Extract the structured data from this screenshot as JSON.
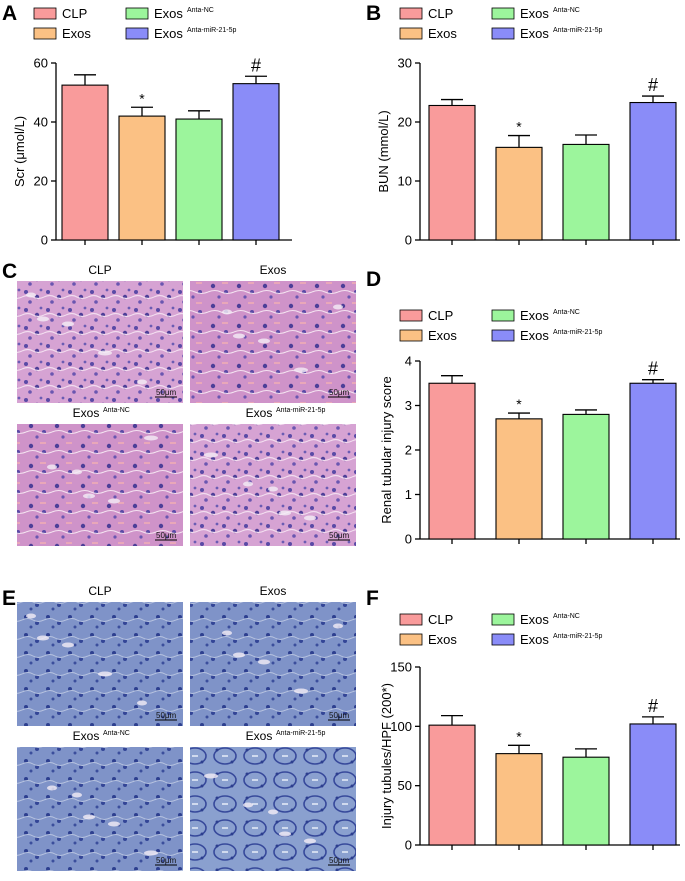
{
  "colors": {
    "CLP": "#f99b9b",
    "Exos": "#fbc184",
    "ExosAntaNC": "#9cf59c",
    "ExosAnta": "#8a8cf8",
    "he_stain": "#c98fc8",
    "toluidine": "#6f84c4"
  },
  "legend": {
    "clp": "CLP",
    "exos": "Exos",
    "nc_base": "Exos",
    "nc_sup": "Anta-NC",
    "anta_base": "Exos",
    "anta_sup": "Anta-miR-21-5p"
  },
  "panels": {
    "A": "A",
    "B": "B",
    "C": "C",
    "D": "D",
    "E": "E",
    "F": "F"
  },
  "markers": {
    "star": "*",
    "hash": "#"
  },
  "chart_data": [
    {
      "type": "bar",
      "panel": "A",
      "categories": [
        "CLP",
        "Exos",
        "Exos Anta-NC",
        "Exos Anta-miR-21-5p"
      ],
      "values": [
        52.5,
        42,
        41,
        53
      ],
      "errors": [
        3.5,
        3,
        2.8,
        2.5
      ],
      "annotations": [
        "",
        "*",
        "",
        "#"
      ],
      "ylabel": "Scr (μmol/L)",
      "ylim": [
        0,
        60
      ],
      "yticks": [
        0,
        20,
        40,
        60
      ]
    },
    {
      "type": "bar",
      "panel": "B",
      "categories": [
        "CLP",
        "Exos",
        "Exos Anta-NC",
        "Exos Anta-miR-21-5p"
      ],
      "values": [
        22.8,
        15.7,
        16.2,
        23.3
      ],
      "errors": [
        1.0,
        2.0,
        1.6,
        1.1
      ],
      "annotations": [
        "",
        "*",
        "",
        "#"
      ],
      "ylabel": "BUN (mmol/L)",
      "ylim": [
        0,
        30
      ],
      "yticks": [
        0,
        10,
        20,
        30
      ]
    },
    {
      "type": "bar",
      "panel": "D",
      "categories": [
        "CLP",
        "Exos",
        "Exos Anta-NC",
        "Exos Anta-miR-21-5p"
      ],
      "values": [
        3.5,
        2.7,
        2.8,
        3.5
      ],
      "errors": [
        0.17,
        0.13,
        0.1,
        0.08
      ],
      "annotations": [
        "",
        "*",
        "",
        "#"
      ],
      "ylabel": "Renal tubular injury score",
      "ylim": [
        0,
        4
      ],
      "yticks": [
        0,
        1,
        2,
        3,
        4
      ]
    },
    {
      "type": "bar",
      "panel": "F",
      "categories": [
        "CLP",
        "Exos",
        "Exos Anta-NC",
        "Exos Anta-miR-21-5p"
      ],
      "values": [
        101,
        77,
        74,
        102
      ],
      "errors": [
        8,
        7,
        7,
        6
      ],
      "annotations": [
        "",
        "*",
        "",
        "#"
      ],
      "ylabel": "Injury tubules/HPF (200*)",
      "ylim": [
        0,
        150
      ],
      "yticks": [
        0,
        50,
        100,
        150
      ]
    }
  ],
  "micrographs": {
    "C": [
      {
        "title": "CLP",
        "sup": "",
        "scale": "50μm"
      },
      {
        "title": "Exos",
        "sup": "",
        "scale": "50μm"
      },
      {
        "title": "Exos",
        "sup": "Anta-NC",
        "scale": "50μm"
      },
      {
        "title": "Exos",
        "sup": "Anta-miR-21-5p",
        "scale": "50μm"
      }
    ],
    "E": [
      {
        "title": "CLP",
        "sup": "",
        "scale": "50μm"
      },
      {
        "title": "Exos",
        "sup": "",
        "scale": "50μm"
      },
      {
        "title": "Exos",
        "sup": "Anta-NC",
        "scale": "50μm"
      },
      {
        "title": "Exos",
        "sup": "Anta-miR-21-5p",
        "scale": "50μm"
      }
    ]
  }
}
